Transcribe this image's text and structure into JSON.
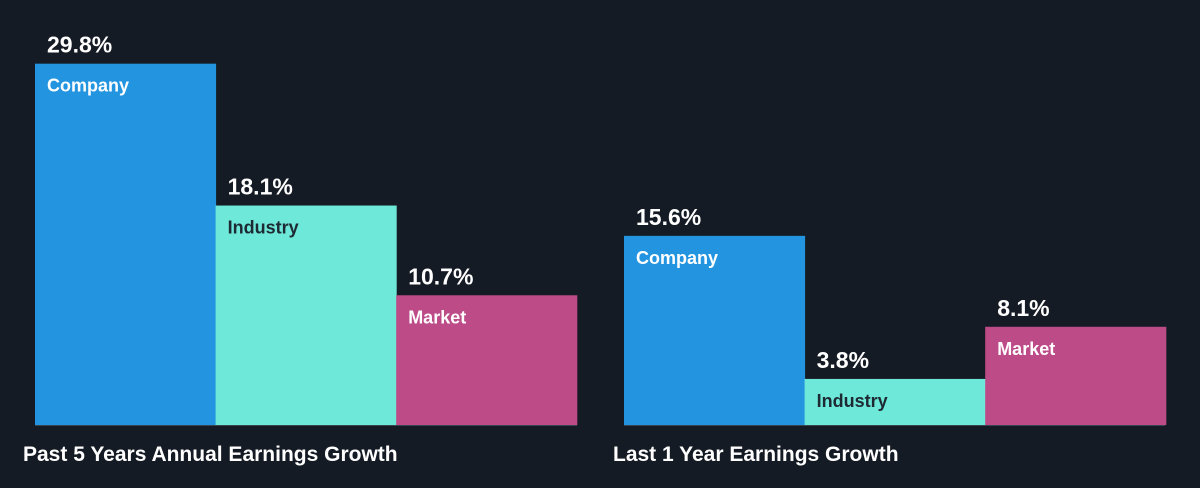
{
  "colors": {
    "background": "#151b24",
    "company": "#2394e0",
    "industry": "#6ee8d8",
    "market": "#bd4b88",
    "baseline": "#3a4350"
  },
  "chart_data": [
    {
      "type": "bar",
      "title": "Past 5 Years Annual Earnings Growth",
      "categories": [
        "Company",
        "Industry",
        "Market"
      ],
      "values": [
        29.8,
        18.1,
        10.7
      ],
      "value_labels": [
        "29.8%",
        "18.1%",
        "10.7%"
      ],
      "ylim": [
        0,
        32
      ],
      "grid": false,
      "legend": "none"
    },
    {
      "type": "bar",
      "title": "Last 1 Year Earnings Growth",
      "categories": [
        "Company",
        "Industry",
        "Market"
      ],
      "values": [
        15.6,
        3.8,
        8.1
      ],
      "value_labels": [
        "15.6%",
        "3.8%",
        "8.1%"
      ],
      "ylim": [
        0,
        32
      ],
      "grid": false,
      "legend": "none"
    }
  ]
}
